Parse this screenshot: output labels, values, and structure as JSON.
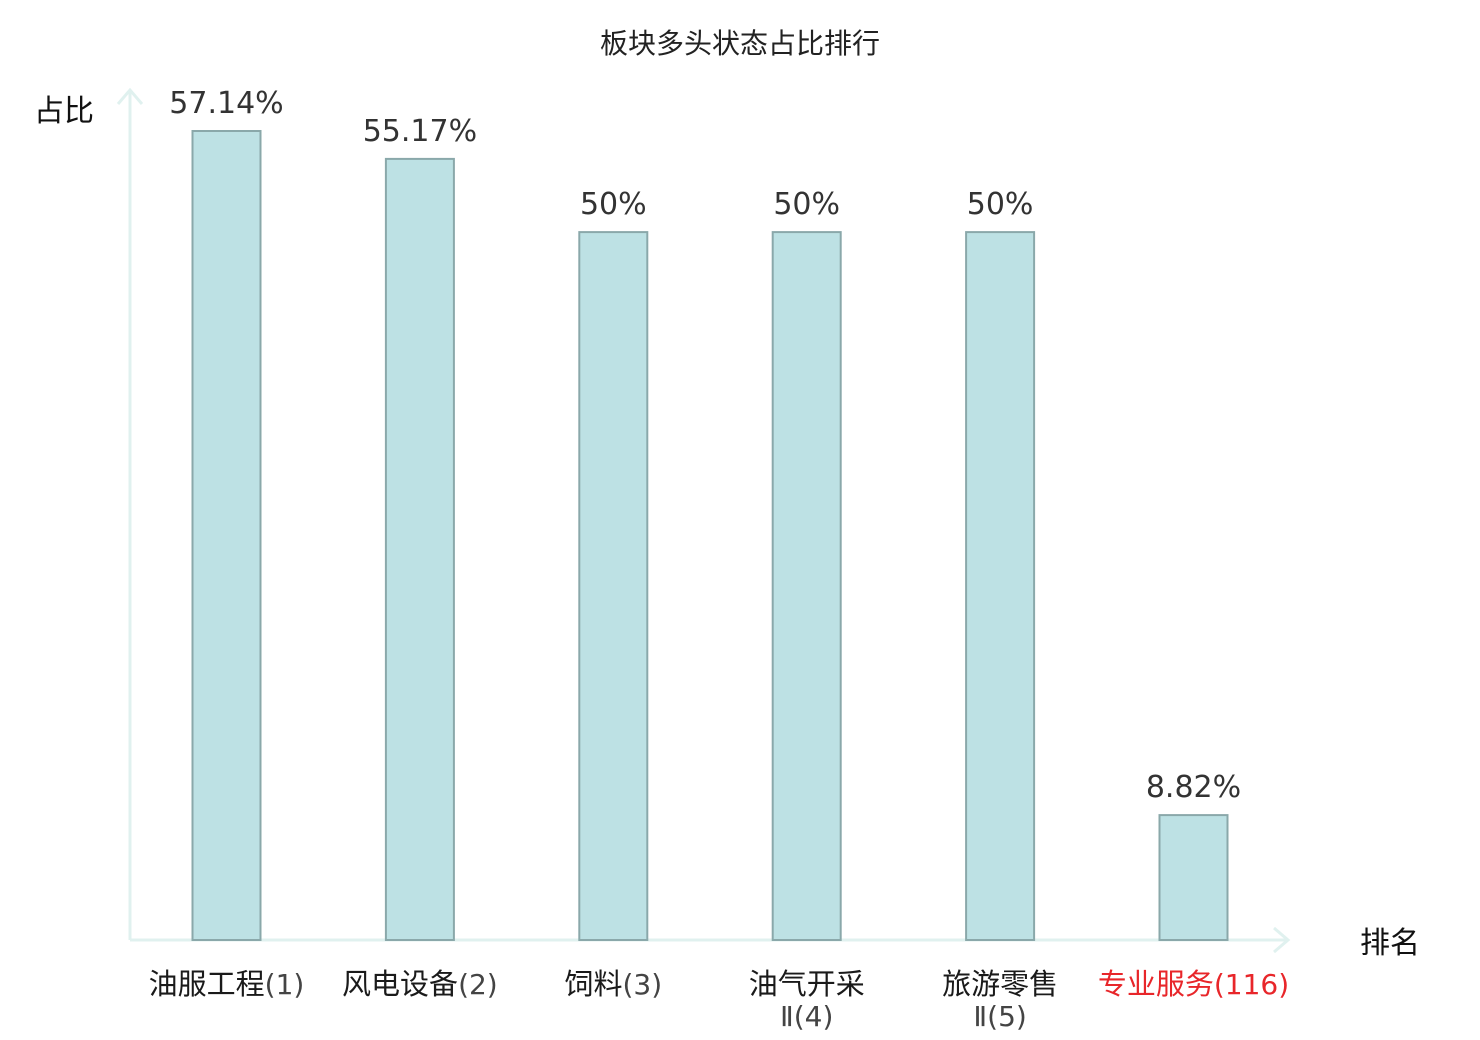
{
  "chart_data": {
    "type": "bar",
    "title": "板块多头状态占比排行",
    "ylabel": "占比",
    "xlabel": "排名",
    "ylim": [
      0,
      0.6
    ],
    "grid": false,
    "colors": {
      "bar_fill": "#bde1e4",
      "bar_stroke": "#8aa8aa",
      "axis": "#e0f1ef",
      "highlight_text": "#e8262a",
      "normal_text": "#333333"
    },
    "bars": [
      {
        "line1": "油服工程",
        "rank_line1": "(1)",
        "line2": "",
        "value": 0.5714,
        "label": "57.14%",
        "highlight": false
      },
      {
        "line1": "风电设备",
        "rank_line1": "(2)",
        "line2": "",
        "value": 0.5517,
        "label": "55.17%",
        "highlight": false
      },
      {
        "line1": "饲料",
        "rank_line1": "(3)",
        "line2": "",
        "value": 0.5,
        "label": "50%",
        "highlight": false
      },
      {
        "line1": "油气开采",
        "rank_line1": "",
        "line2": "Ⅱ(4)",
        "value": 0.5,
        "label": "50%",
        "highlight": false
      },
      {
        "line1": "旅游零售",
        "rank_line1": "",
        "line2": "Ⅱ(5)",
        "value": 0.5,
        "label": "50%",
        "highlight": false
      },
      {
        "line1": "专业服务",
        "rank_line1": "(116)",
        "line2": "",
        "value": 0.0882,
        "label": "8.82%",
        "highlight": true
      }
    ]
  }
}
